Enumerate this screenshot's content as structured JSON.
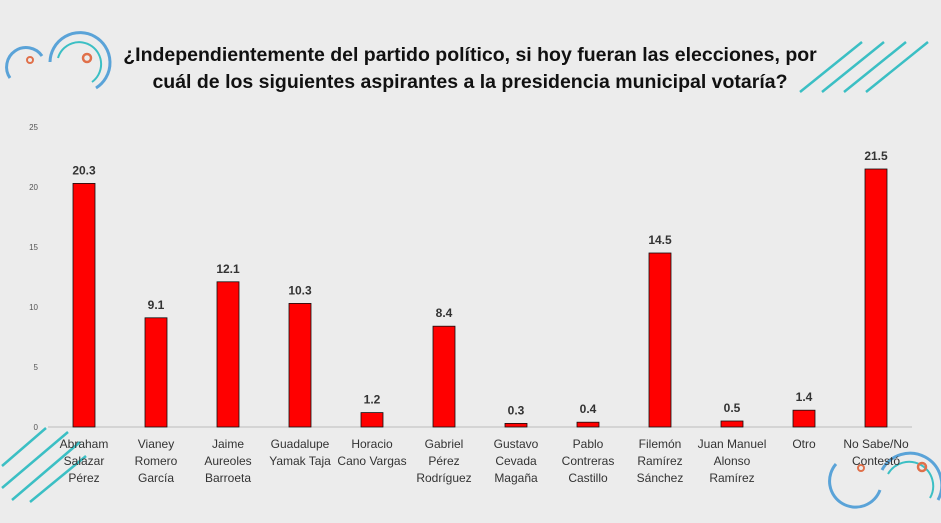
{
  "title_lines": [
    "¿Independientemente del partido político, si hoy fueran las elecciones, por",
    "cuál de los siguientes aspirantes a la presidencia municipal votaría?"
  ],
  "chart_data": {
    "type": "bar",
    "title": "¿Independientemente del partido político, si hoy fueran las elecciones, por cuál de los siguientes aspirantes a la presidencia municipal votaría?",
    "xlabel": "",
    "ylabel": "",
    "ylim": [
      0,
      25
    ],
    "yticks": [
      0,
      5,
      10,
      15,
      20,
      25
    ],
    "grid": false,
    "bar_color": "#ff0000",
    "categories": [
      [
        "Abraham",
        "Salazar",
        "Pérez"
      ],
      [
        "Vianey",
        "Romero",
        "García"
      ],
      [
        "Jaime",
        "Aureoles",
        "Barroeta"
      ],
      [
        "Guadalupe",
        "Yamak Taja"
      ],
      [
        "Horacio",
        "Cano Vargas"
      ],
      [
        "Gabriel",
        "Pérez",
        "Rodríguez"
      ],
      [
        "Gustavo",
        "Cevada",
        "Magaña"
      ],
      [
        "Pablo",
        "Contreras",
        "Castillo"
      ],
      [
        "Filemón",
        "Ramírez",
        "Sánchez"
      ],
      [
        "Juan Manuel",
        "Alonso",
        "Ramírez"
      ],
      [
        "Otro"
      ],
      [
        "No Sabe/No",
        "Contestó"
      ]
    ],
    "values": [
      20.3,
      9.1,
      12.1,
      10.3,
      1.2,
      8.4,
      0.3,
      0.4,
      14.5,
      0.5,
      1.4,
      21.5
    ]
  },
  "decor": {
    "teal": "#3bbfc4",
    "blue": "#5aa3d8",
    "orange": "#e0704a"
  }
}
